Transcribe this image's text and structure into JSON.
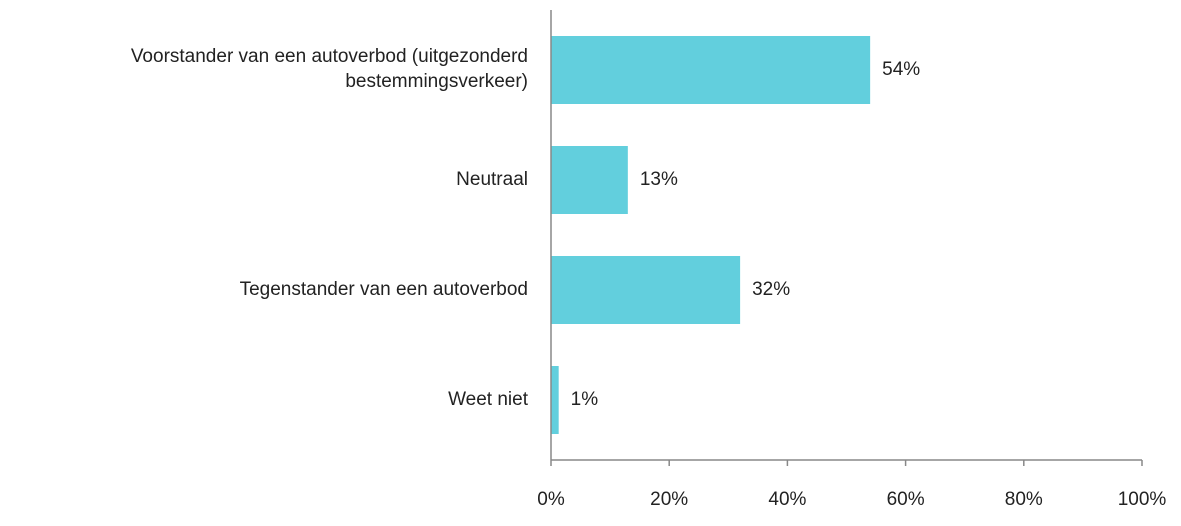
{
  "chart_data": {
    "type": "barh",
    "categories": [
      "Voorstander van een autoverbod (uitgezonderd bestemmingsverkeer)",
      "Neutraal",
      "Tegenstander van een autoverbod",
      "Weet niet"
    ],
    "values": [
      54,
      13,
      32,
      1.3
    ],
    "value_labels": [
      "54%",
      "13%",
      "32%",
      "1%"
    ],
    "color": "#62cfdd",
    "xlim": [
      0,
      100
    ],
    "xticks": [
      {
        "value": 0,
        "label": "0%"
      },
      {
        "value": 20,
        "label": "20%"
      },
      {
        "value": 40,
        "label": "40%"
      },
      {
        "value": 60,
        "label": "60%"
      },
      {
        "value": 80,
        "label": "80%"
      },
      {
        "value": 100,
        "label": "100%"
      }
    ]
  }
}
